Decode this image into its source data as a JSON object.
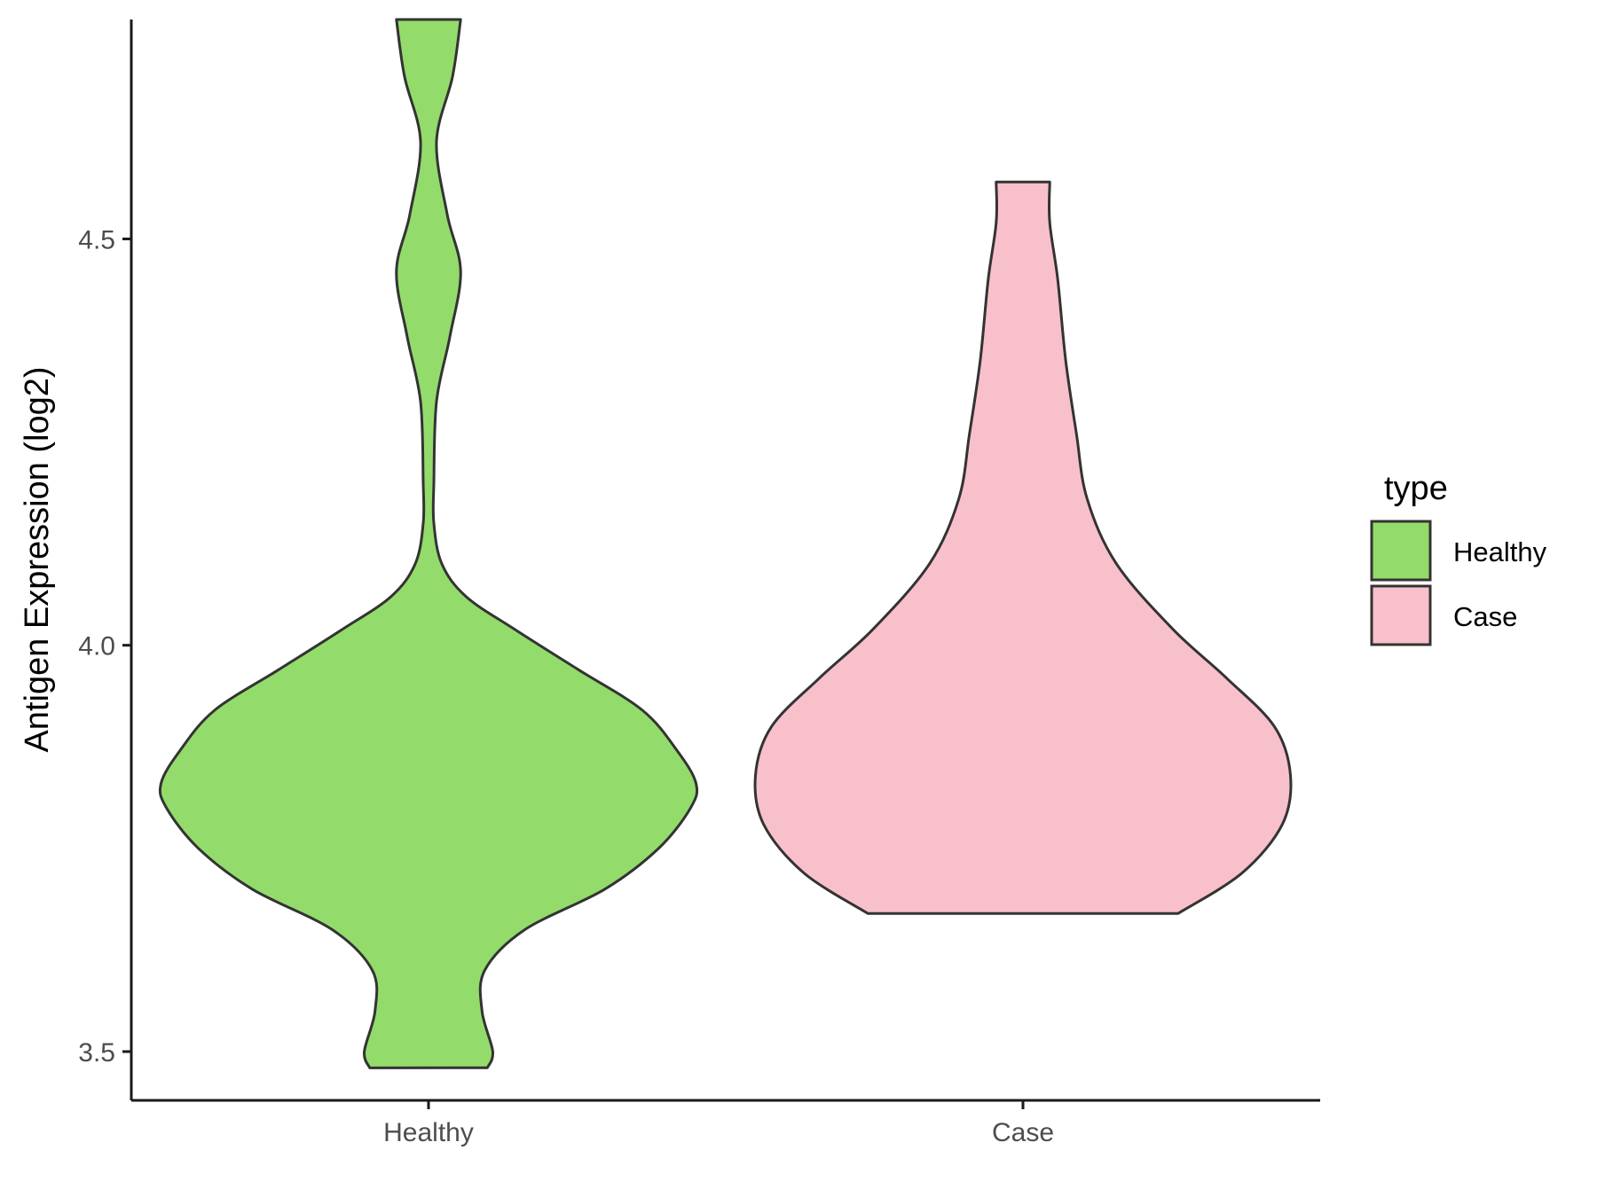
{
  "chart_data": {
    "type": "violin",
    "xlabel": "",
    "ylabel": "Antigen Expression (log2)",
    "ylim": [
      3.44,
      4.77
    ],
    "yticks": [
      "3.5",
      "4.0",
      "4.5"
    ],
    "ytick_values": [
      3.5,
      4.0,
      4.5
    ],
    "categories": [
      "Healthy",
      "Case"
    ],
    "grid": false,
    "legend": {
      "title": "type",
      "position": "right",
      "entries": [
        {
          "label": "Healthy",
          "color": "#93dc6b"
        },
        {
          "label": "Case",
          "color": "#f8c0cb"
        }
      ]
    },
    "series": [
      {
        "name": "Healthy",
        "color": "#93dc6b",
        "min": 3.48,
        "max": 4.77,
        "density": [
          [
            3.48,
            0.22
          ],
          [
            3.5,
            0.24
          ],
          [
            3.55,
            0.2
          ],
          [
            3.6,
            0.21
          ],
          [
            3.65,
            0.36
          ],
          [
            3.7,
            0.66
          ],
          [
            3.75,
            0.86
          ],
          [
            3.8,
            0.98
          ],
          [
            3.83,
            1.0
          ],
          [
            3.87,
            0.93
          ],
          [
            3.92,
            0.8
          ],
          [
            3.97,
            0.56
          ],
          [
            4.02,
            0.32
          ],
          [
            4.06,
            0.14
          ],
          [
            4.1,
            0.05
          ],
          [
            4.15,
            0.02
          ],
          [
            4.2,
            0.02
          ],
          [
            4.3,
            0.03
          ],
          [
            4.38,
            0.08
          ],
          [
            4.46,
            0.12
          ],
          [
            4.53,
            0.07
          ],
          [
            4.62,
            0.03
          ],
          [
            4.7,
            0.09
          ],
          [
            4.77,
            0.12
          ]
        ]
      },
      {
        "name": "Case",
        "color": "#f8c0cb",
        "min": 3.67,
        "max": 4.57,
        "density": [
          [
            3.67,
            0.58
          ],
          [
            3.72,
            0.82
          ],
          [
            3.78,
            0.97
          ],
          [
            3.84,
            1.0
          ],
          [
            3.9,
            0.94
          ],
          [
            3.96,
            0.76
          ],
          [
            4.02,
            0.56
          ],
          [
            4.1,
            0.35
          ],
          [
            4.18,
            0.24
          ],
          [
            4.26,
            0.2
          ],
          [
            4.35,
            0.16
          ],
          [
            4.45,
            0.13
          ],
          [
            4.52,
            0.1
          ],
          [
            4.57,
            0.1
          ]
        ]
      }
    ]
  }
}
